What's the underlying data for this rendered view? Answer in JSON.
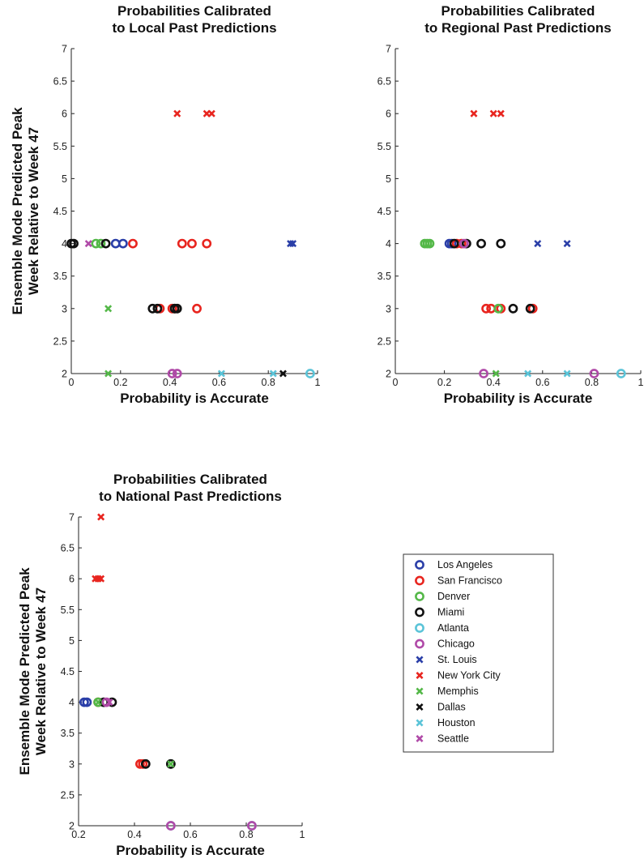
{
  "figure": {
    "legend": {
      "location": "bottom-right",
      "entries": [
        {
          "name": "Los Angeles",
          "marker": "o",
          "color": "#2b3fa8"
        },
        {
          "name": "San Francisco",
          "marker": "o",
          "color": "#e8251f"
        },
        {
          "name": "Denver",
          "marker": "o",
          "color": "#54b848"
        },
        {
          "name": "Miami",
          "marker": "o",
          "color": "#111111"
        },
        {
          "name": "Atlanta",
          "marker": "o",
          "color": "#5bc4d8"
        },
        {
          "name": "Chicago",
          "marker": "o",
          "color": "#b04aa8"
        },
        {
          "name": "St. Louis",
          "marker": "x",
          "color": "#2b3fa8"
        },
        {
          "name": "New York City",
          "marker": "x",
          "color": "#e8251f"
        },
        {
          "name": "Memphis",
          "marker": "x",
          "color": "#54b848"
        },
        {
          "name": "Dallas",
          "marker": "x",
          "color": "#111111"
        },
        {
          "name": "Houston",
          "marker": "x",
          "color": "#5bc4d8"
        },
        {
          "name": "Seattle",
          "marker": "x",
          "color": "#b04aa8"
        }
      ]
    }
  },
  "chart_data": [
    {
      "type": "scatter",
      "title": [
        "Probabilities Calibrated",
        "to Local Past Predictions"
      ],
      "xlabel": "Probability is Accurate",
      "ylabel": [
        "Ensemble Mode Predicted Peak",
        "Week Relative to Week 47"
      ],
      "xlim": [
        0,
        1
      ],
      "ylim": [
        2,
        7
      ],
      "xticks": [
        "0",
        "0.2",
        "0.4",
        "0.6",
        "0.8",
        "1"
      ],
      "xtick_values": [
        0,
        0.2,
        0.4,
        0.6,
        0.8,
        1
      ],
      "yticks": [
        "2",
        "2.5",
        "3",
        "3.5",
        "4",
        "4.5",
        "5",
        "5.5",
        "6",
        "6.5",
        "7"
      ],
      "ytick_values": [
        2,
        2.5,
        3,
        3.5,
        4,
        4.5,
        5,
        5.5,
        6,
        6.5,
        7
      ],
      "grid": false,
      "series": [
        {
          "name": "Los Angeles",
          "points": [
            [
              0.18,
              4
            ],
            [
              0.21,
              4
            ]
          ]
        },
        {
          "name": "San Francisco",
          "points": [
            [
              0.25,
              4
            ],
            [
              0.45,
              4
            ],
            [
              0.49,
              4
            ],
            [
              0.55,
              4
            ],
            [
              0.36,
              3
            ],
            [
              0.41,
              3
            ],
            [
              0.42,
              3
            ],
            [
              0.51,
              3
            ]
          ]
        },
        {
          "name": "Denver",
          "points": [
            [
              0.1,
              4
            ],
            [
              0.12,
              4
            ]
          ]
        },
        {
          "name": "Miami",
          "points": [
            [
              0.0,
              4
            ],
            [
              0.01,
              4
            ],
            [
              0.14,
              4
            ],
            [
              0.33,
              3
            ],
            [
              0.35,
              3
            ],
            [
              0.42,
              3
            ],
            [
              0.43,
              3
            ]
          ]
        },
        {
          "name": "Atlanta",
          "points": [
            [
              0.97,
              2
            ]
          ]
        },
        {
          "name": "Chicago",
          "points": [
            [
              0.41,
              2
            ],
            [
              0.43,
              2
            ]
          ]
        },
        {
          "name": "St. Louis",
          "points": [
            [
              0.89,
              4
            ],
            [
              0.9,
              4
            ]
          ]
        },
        {
          "name": "New York City",
          "points": [
            [
              0.43,
              6
            ],
            [
              0.55,
              6
            ],
            [
              0.57,
              6
            ]
          ]
        },
        {
          "name": "Memphis",
          "points": [
            [
              0.15,
              3
            ],
            [
              0.15,
              2
            ]
          ]
        },
        {
          "name": "Dallas",
          "points": [
            [
              0.86,
              2
            ]
          ]
        },
        {
          "name": "Houston",
          "points": [
            [
              0.61,
              2
            ],
            [
              0.82,
              2
            ]
          ]
        },
        {
          "name": "Seattle",
          "points": [
            [
              0.07,
              4
            ]
          ]
        }
      ]
    },
    {
      "type": "scatter",
      "title": [
        "Probabilities Calibrated",
        "to Regional Past Predictions"
      ],
      "xlabel": "Probability is Accurate",
      "ylabel": [],
      "xlim": [
        0,
        1
      ],
      "ylim": [
        2,
        7
      ],
      "xticks": [
        "0",
        "0.2",
        "0.4",
        "0.6",
        "0.8",
        "1"
      ],
      "xtick_values": [
        0,
        0.2,
        0.4,
        0.6,
        0.8,
        1
      ],
      "yticks": [
        "2",
        "2.5",
        "3",
        "3.5",
        "4",
        "4.5",
        "5",
        "5.5",
        "6",
        "6.5",
        "7"
      ],
      "ytick_values": [
        2,
        2.5,
        3,
        3.5,
        4,
        4.5,
        5,
        5.5,
        6,
        6.5,
        7
      ],
      "grid": false,
      "series": [
        {
          "name": "Los Angeles",
          "points": [
            [
              0.22,
              4
            ],
            [
              0.23,
              4
            ]
          ]
        },
        {
          "name": "San Francisco",
          "points": [
            [
              0.25,
              4
            ],
            [
              0.27,
              4
            ],
            [
              0.37,
              3
            ],
            [
              0.39,
              3
            ],
            [
              0.43,
              3
            ],
            [
              0.56,
              3
            ]
          ]
        },
        {
          "name": "Denver",
          "points": [
            [
              0.12,
              4
            ],
            [
              0.13,
              4
            ],
            [
              0.14,
              4
            ],
            [
              0.42,
              3
            ]
          ]
        },
        {
          "name": "Miami",
          "points": [
            [
              0.24,
              4
            ],
            [
              0.29,
              4
            ],
            [
              0.35,
              4
            ],
            [
              0.43,
              4
            ],
            [
              0.48,
              3
            ],
            [
              0.55,
              3
            ]
          ]
        },
        {
          "name": "Atlanta",
          "points": [
            [
              0.92,
              2
            ]
          ]
        },
        {
          "name": "Chicago",
          "points": [
            [
              0.28,
              4
            ],
            [
              0.36,
              2
            ],
            [
              0.81,
              2
            ]
          ]
        },
        {
          "name": "St. Louis",
          "points": [
            [
              0.58,
              4
            ],
            [
              0.7,
              4
            ]
          ]
        },
        {
          "name": "New York City",
          "points": [
            [
              0.32,
              6
            ],
            [
              0.4,
              6
            ],
            [
              0.43,
              6
            ]
          ]
        },
        {
          "name": "Memphis",
          "points": [
            [
              0.41,
              2
            ]
          ]
        },
        {
          "name": "Dallas",
          "points": []
        },
        {
          "name": "Houston",
          "points": [
            [
              0.54,
              2
            ],
            [
              0.7,
              2
            ]
          ]
        },
        {
          "name": "Seattle",
          "points": []
        }
      ]
    },
    {
      "type": "scatter",
      "title": [
        "Probabilities Calibrated",
        "to National Past Predictions"
      ],
      "xlabel": "Probability is Accurate",
      "ylabel": [
        "Ensemble Mode Predicted Peak",
        "Week Relative to Week 47"
      ],
      "xlim": [
        0.2,
        1
      ],
      "ylim": [
        2,
        7
      ],
      "xticks": [
        "0.2",
        "0.4",
        "0.6",
        "0.8",
        "1"
      ],
      "xtick_values": [
        0.2,
        0.4,
        0.6,
        0.8,
        1
      ],
      "yticks": [
        "2",
        "2.5",
        "3",
        "3.5",
        "4",
        "4.5",
        "5",
        "5.5",
        "6",
        "6.5",
        "7"
      ],
      "ytick_values": [
        2,
        2.5,
        3,
        3.5,
        4,
        4.5,
        5,
        5.5,
        6,
        6.5,
        7
      ],
      "grid": false,
      "series": [
        {
          "name": "Los Angeles",
          "points": [
            [
              0.22,
              4
            ],
            [
              0.23,
              4
            ]
          ]
        },
        {
          "name": "San Francisco",
          "points": [
            [
              0.27,
              4
            ],
            [
              0.42,
              3
            ],
            [
              0.43,
              3
            ]
          ]
        },
        {
          "name": "Denver",
          "points": [
            [
              0.27,
              4
            ],
            [
              0.53,
              3
            ]
          ]
        },
        {
          "name": "Miami",
          "points": [
            [
              0.29,
              4
            ],
            [
              0.32,
              4
            ],
            [
              0.44,
              3
            ],
            [
              0.53,
              3
            ]
          ]
        },
        {
          "name": "Atlanta",
          "points": [
            [
              0.53,
              2
            ],
            [
              0.82,
              2
            ]
          ]
        },
        {
          "name": "Chicago",
          "points": [
            [
              0.3,
              4
            ],
            [
              0.53,
              2
            ],
            [
              0.82,
              2
            ]
          ]
        },
        {
          "name": "St. Louis",
          "points": []
        },
        {
          "name": "New York City",
          "points": [
            [
              0.26,
              6
            ],
            [
              0.27,
              6
            ],
            [
              0.28,
              6
            ],
            [
              0.28,
              7
            ]
          ]
        },
        {
          "name": "Memphis",
          "points": [
            [
              0.27,
              4
            ],
            [
              0.53,
              3
            ]
          ]
        },
        {
          "name": "Dallas",
          "points": []
        },
        {
          "name": "Houston",
          "points": []
        },
        {
          "name": "Seattle",
          "points": [
            [
              0.31,
              4
            ]
          ]
        }
      ]
    }
  ]
}
